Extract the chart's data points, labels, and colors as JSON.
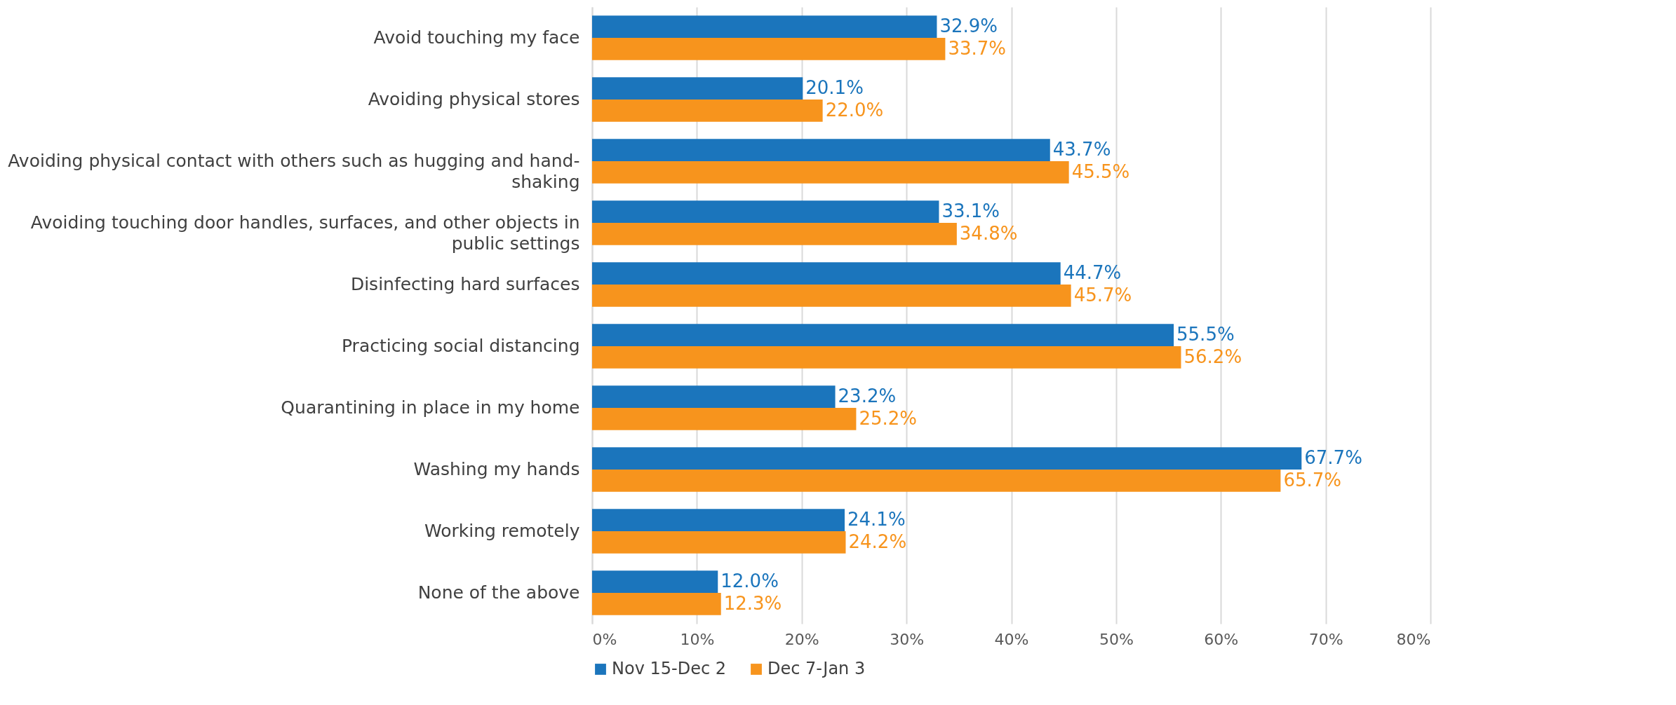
{
  "chart_data": {
    "type": "bar",
    "orientation": "horizontal",
    "categories": [
      "Avoid touching my face",
      "Avoiding physical stores",
      "Avoiding physical contact with others such as hugging and hand-shaking",
      "Avoiding touching door handles, surfaces, and other objects in public settings",
      "Disinfecting hard surfaces",
      "Practicing social distancing",
      "Quarantining in place in my home",
      "Washing my hands",
      "Working remotely",
      "None of the above"
    ],
    "series": [
      {
        "name": "Nov 15-Dec 2",
        "color": "#1b75bc",
        "values": [
          32.9,
          20.1,
          43.7,
          33.1,
          44.7,
          55.5,
          23.2,
          67.7,
          24.1,
          12.0
        ],
        "value_labels": [
          "32.9%",
          "20.1%",
          "43.7%",
          "33.1%",
          "44.7%",
          "55.5%",
          "23.2%",
          "67.7%",
          "24.1%",
          "12.0%"
        ]
      },
      {
        "name": "Dec 7-Jan 3",
        "color": "#f7941d",
        "values": [
          33.7,
          22.0,
          45.5,
          34.8,
          45.7,
          56.2,
          25.2,
          65.7,
          24.2,
          12.3
        ],
        "value_labels": [
          "33.7%",
          "22.0%",
          "45.5%",
          "34.8%",
          "45.7%",
          "56.2%",
          "25.2%",
          "65.7%",
          "24.2%",
          "12.3%"
        ]
      }
    ],
    "xlim": [
      0,
      80
    ],
    "xticks": [
      {
        "value": 0,
        "label": "0%"
      },
      {
        "value": 10,
        "label": "10%"
      },
      {
        "value": 20,
        "label": "20%"
      },
      {
        "value": 30,
        "label": "30%"
      },
      {
        "value": 40,
        "label": "40%"
      },
      {
        "value": 50,
        "label": "50%"
      },
      {
        "value": 60,
        "label": "60%"
      },
      {
        "value": 70,
        "label": "70%"
      },
      {
        "value": 80,
        "label": "80%"
      }
    ],
    "grid": "x",
    "legend": "bottom"
  }
}
